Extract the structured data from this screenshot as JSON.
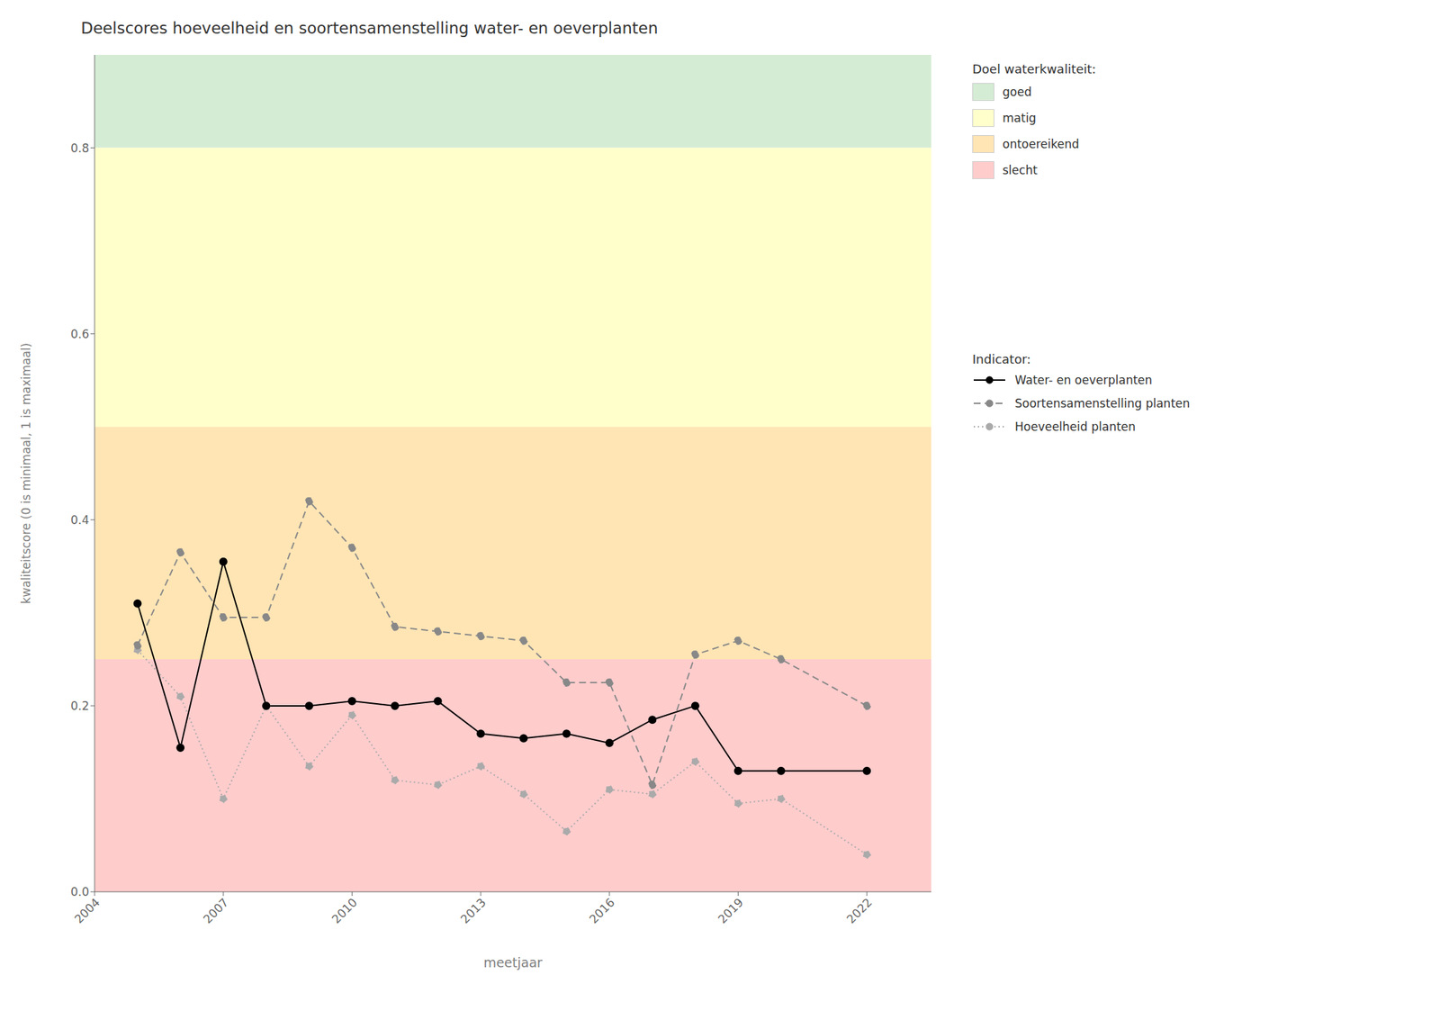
{
  "chart_data": {
    "type": "line",
    "title": "Deelscores hoeveelheid en soortensamenstelling water- en oeverplanten",
    "x_label": "meetjaar",
    "y_label": "kwaliteitscore (0 is minimaal, 1 is maximaal)",
    "x": [
      2005,
      2006,
      2007,
      2008,
      2009,
      2010,
      2011,
      2012,
      2013,
      2014,
      2015,
      2016,
      2017,
      2018,
      2019,
      2020,
      2022
    ],
    "series": [
      {
        "name": "Water- en oeverplanten",
        "color": "#000000",
        "line_style": "solid",
        "marker": "circle",
        "values": [
          0.31,
          0.155,
          0.355,
          0.2,
          0.2,
          0.205,
          0.2,
          0.205,
          0.17,
          0.165,
          0.17,
          0.16,
          0.185,
          0.2,
          0.13,
          0.13,
          0.13
        ]
      },
      {
        "name": "Soortensamenstelling planten",
        "color": "#888888",
        "line_style": "dashed",
        "marker": "circle",
        "values": [
          0.265,
          0.365,
          0.295,
          0.295,
          0.42,
          0.37,
          0.285,
          0.28,
          0.275,
          0.27,
          0.225,
          0.225,
          0.115,
          0.255,
          0.27,
          0.25,
          0.2
        ]
      },
      {
        "name": "Hoeveelheid planten",
        "color": "#aaaaaa",
        "line_style": "dotted",
        "marker": "circle",
        "values": [
          0.26,
          0.21,
          0.1,
          0.2,
          0.135,
          0.19,
          0.12,
          0.115,
          0.135,
          0.105,
          0.065,
          0.11,
          0.105,
          0.14,
          0.095,
          0.1,
          0.04
        ]
      }
    ],
    "series_title": "Indicator:",
    "zones_title": "Doel waterkwaliteit:",
    "zones": [
      {
        "name": "goed",
        "ymin": 0.8,
        "ymax": 0.9,
        "color": "#d5ecd4"
      },
      {
        "name": "matig",
        "ymin": 0.5,
        "ymax": 0.8,
        "color": "#ffffcc"
      },
      {
        "name": "ontoereikend",
        "ymin": 0.25,
        "ymax": 0.5,
        "color": "#ffe5b4"
      },
      {
        "name": "slecht",
        "ymin": 0.0,
        "ymax": 0.25,
        "color": "#ffcccc"
      }
    ],
    "xlim": [
      2004,
      2023.5
    ],
    "ylim": [
      0,
      0.9
    ],
    "xticks": [
      2004,
      2007,
      2010,
      2013,
      2016,
      2019,
      2022
    ],
    "yticks": [
      {
        "value": 0,
        "label": "0.0"
      },
      0.2,
      0.4,
      0.6,
      0.8
    ],
    "grid": true,
    "legend": "right"
  }
}
